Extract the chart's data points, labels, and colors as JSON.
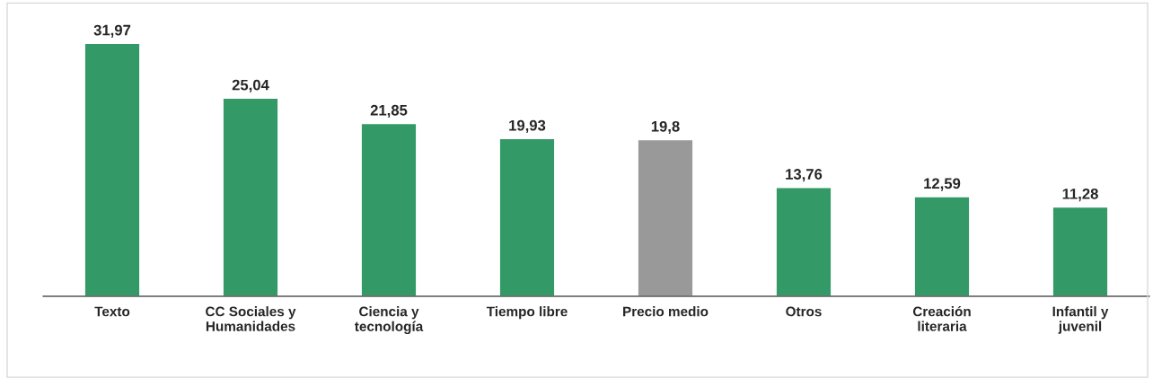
{
  "chart_data": {
    "type": "bar",
    "categories": [
      "Texto",
      "CC Sociales y\nHumanidades",
      "Ciencia y\ntecnología",
      "Tiempo libre",
      "Precio medio",
      "Otros",
      "Creación\nliteraria",
      "Infantil y\njuvenil"
    ],
    "values": [
      31.97,
      25.04,
      21.85,
      19.93,
      19.8,
      13.76,
      12.59,
      11.28
    ],
    "colors": [
      "#339966",
      "#339966",
      "#339966",
      "#339966",
      "#999999",
      "#339966",
      "#339966",
      "#339966"
    ],
    "value_labels": [
      "31,97",
      "25,04",
      "21,85",
      "19,93",
      "19,8",
      "13,76",
      "12,59",
      "11,28"
    ],
    "grid": false,
    "legend": false
  }
}
